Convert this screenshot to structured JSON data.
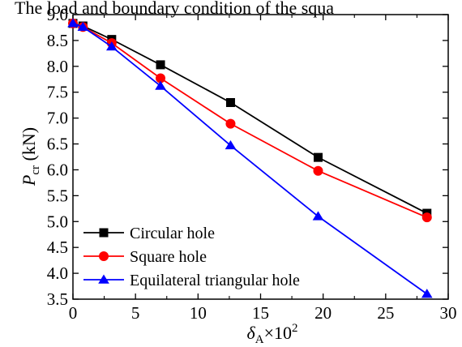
{
  "header": {
    "clipped_title": "The load and boundary condition of the squa"
  },
  "chart_data": {
    "type": "line",
    "x": [
      0,
      0.8,
      3.1,
      7.0,
      12.6,
      19.6,
      28.3
    ],
    "series": [
      {
        "name": "Circular hole",
        "color": "#000000",
        "marker": "square",
        "values": [
          8.83,
          8.78,
          8.52,
          8.03,
          7.3,
          6.24,
          5.16
        ]
      },
      {
        "name": "Square hole",
        "color": "#ff0000",
        "marker": "circle",
        "values": [
          8.83,
          8.76,
          8.45,
          7.77,
          6.89,
          5.98,
          5.08
        ]
      },
      {
        "name": "Equilateral triangular hole",
        "color": "#0000ff",
        "marker": "triangle",
        "values": [
          8.83,
          8.76,
          8.38,
          7.62,
          6.47,
          5.1,
          3.6
        ]
      }
    ],
    "xlim": [
      0,
      30
    ],
    "ylim": [
      3.5,
      9.0
    ],
    "xticks": [
      "0",
      "5",
      "10",
      "15",
      "20",
      "25",
      "30"
    ],
    "yticks": [
      "3.5",
      "4.0",
      "4.5",
      "5.0",
      "5.5",
      "6.0",
      "6.5",
      "7.0",
      "7.5",
      "8.0",
      "8.5",
      "9.0"
    ],
    "xlabel": {
      "symbol": "δ",
      "subscript": "A",
      "suffix": "×10",
      "superscript": "2"
    },
    "ylabel": {
      "symbol": "P",
      "subscript": "cr",
      "suffix": " (kN)"
    },
    "legend_position": "bottom-left",
    "grid": false
  }
}
